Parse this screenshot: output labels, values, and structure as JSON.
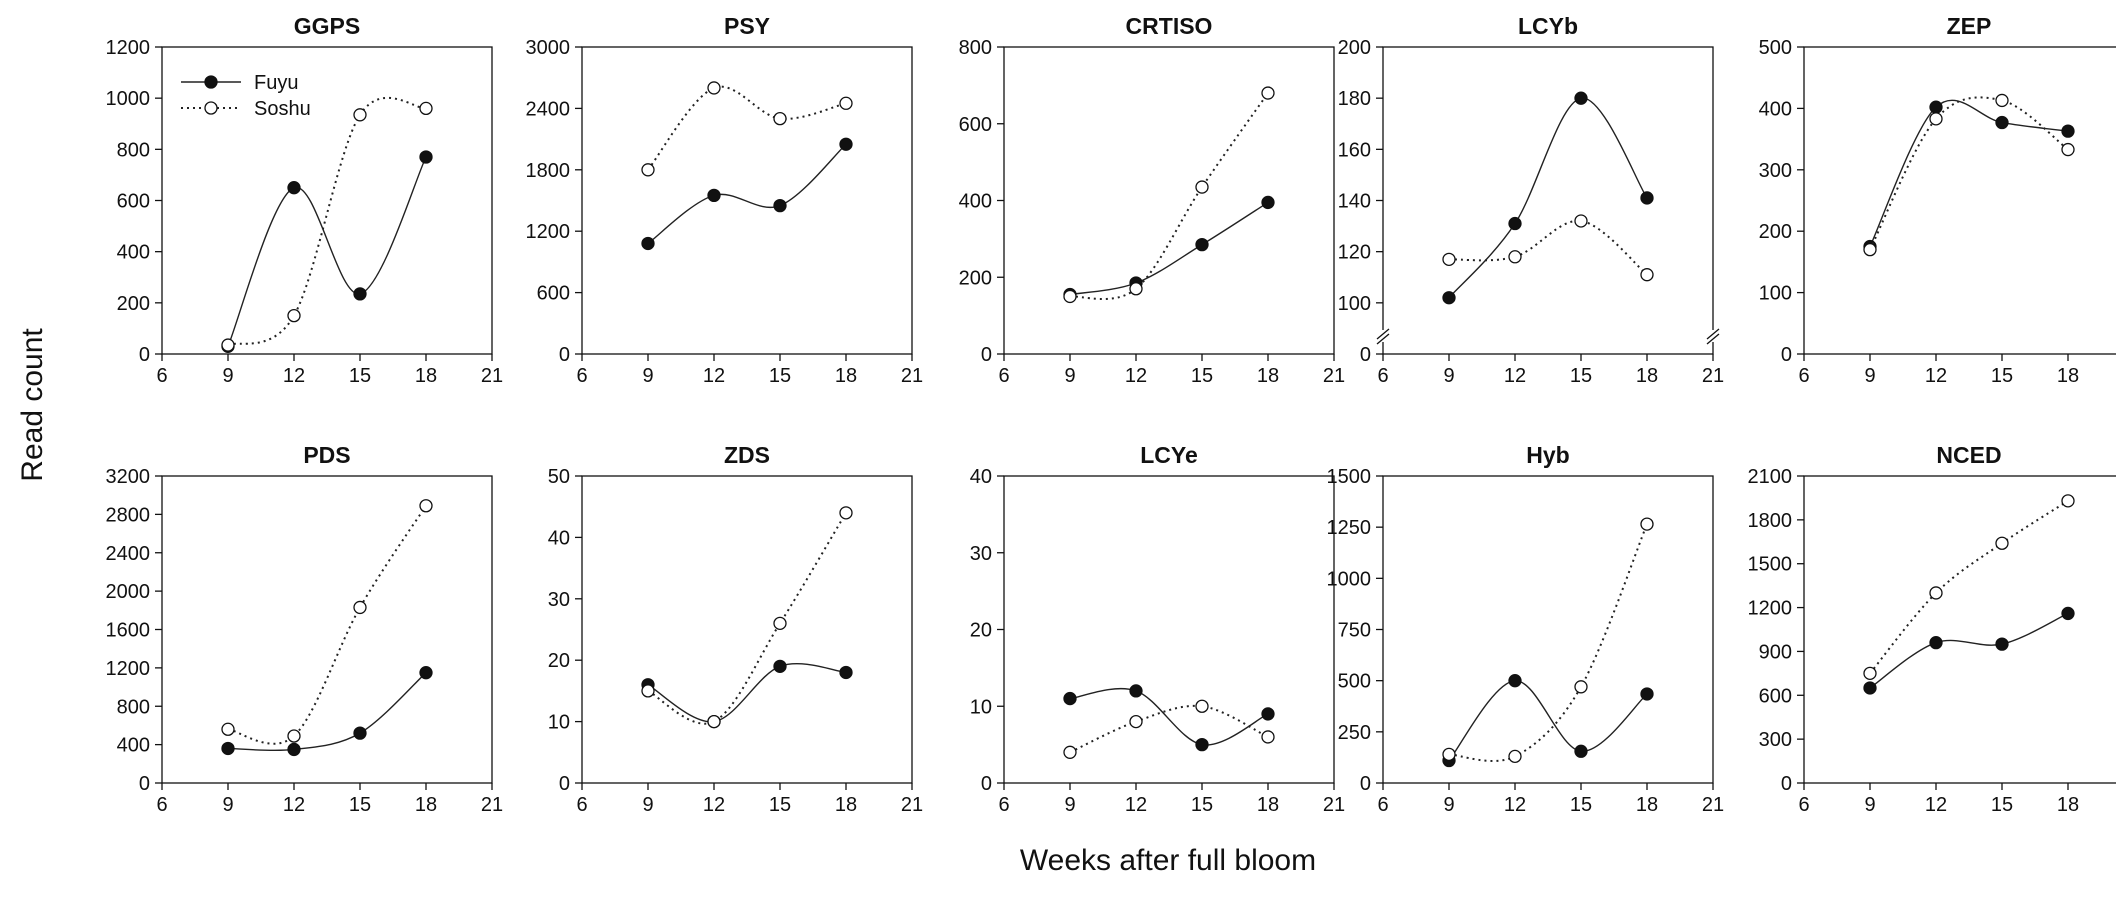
{
  "figure": {
    "ylabel": "Read count",
    "xlabel": "Weeks after full bloom",
    "series_names": [
      "Fuyu",
      "Soshu"
    ]
  },
  "chart_data": [
    {
      "type": "line",
      "title": "GGPS",
      "categories": [
        9,
        12,
        15,
        18
      ],
      "xticks": [
        "6",
        "9",
        "12",
        "15",
        "18",
        "21"
      ],
      "yticks": [
        "0",
        "200",
        "400",
        "600",
        "800",
        "1000",
        "1200"
      ],
      "ylim": [
        0,
        1200
      ],
      "xlim": [
        6,
        21
      ],
      "series": [
        {
          "name": "Fuyu",
          "values": [
            30,
            650,
            235,
            770
          ]
        },
        {
          "name": "Soshu",
          "values": [
            35,
            150,
            935,
            960
          ]
        }
      ]
    },
    {
      "type": "line",
      "title": "PSY",
      "categories": [
        9,
        12,
        15,
        18
      ],
      "xticks": [
        "6",
        "9",
        "12",
        "15",
        "18",
        "21"
      ],
      "yticks": [
        "0",
        "600",
        "1200",
        "1800",
        "2400",
        "3000"
      ],
      "ylim": [
        0,
        3000
      ],
      "xlim": [
        6,
        21
      ],
      "series": [
        {
          "name": "Fuyu",
          "values": [
            1080,
            1550,
            1450,
            2050
          ]
        },
        {
          "name": "Soshu",
          "values": [
            1800,
            2600,
            2300,
            2450
          ]
        }
      ]
    },
    {
      "type": "line",
      "title": "CRTISO",
      "categories": [
        9,
        12,
        15,
        18
      ],
      "xticks": [
        "6",
        "9",
        "12",
        "15",
        "18",
        "21"
      ],
      "yticks": [
        "0",
        "200",
        "400",
        "600",
        "800"
      ],
      "ylim": [
        0,
        800
      ],
      "xlim": [
        6,
        21
      ],
      "series": [
        {
          "name": "Fuyu",
          "values": [
            155,
            185,
            285,
            395
          ]
        },
        {
          "name": "Soshu",
          "values": [
            150,
            170,
            435,
            680
          ]
        }
      ]
    },
    {
      "type": "line",
      "title": "LCYb",
      "categories": [
        9,
        12,
        15,
        18
      ],
      "xticks": [
        "6",
        "9",
        "12",
        "15",
        "18",
        "21"
      ],
      "yticks": [
        "0",
        "100",
        "120",
        "140",
        "160",
        "180",
        "200"
      ],
      "ylim": [
        80,
        200
      ],
      "xlim": [
        6,
        21
      ],
      "axis_break": true,
      "series": [
        {
          "name": "Fuyu",
          "values": [
            102,
            131,
            180,
            141
          ]
        },
        {
          "name": "Soshu",
          "values": [
            117,
            118,
            132,
            111
          ]
        }
      ]
    },
    {
      "type": "line",
      "title": "ZEP",
      "categories": [
        9,
        12,
        15,
        18
      ],
      "xticks": [
        "6",
        "9",
        "12",
        "15",
        "18",
        "21"
      ],
      "yticks": [
        "0",
        "100",
        "200",
        "300",
        "400",
        "500"
      ],
      "ylim": [
        0,
        500
      ],
      "xlim": [
        6,
        21
      ],
      "series": [
        {
          "name": "Fuyu",
          "values": [
            175,
            402,
            377,
            363
          ]
        },
        {
          "name": "Soshu",
          "values": [
            170,
            383,
            413,
            333
          ]
        }
      ]
    },
    {
      "type": "line",
      "title": "PDS",
      "categories": [
        9,
        12,
        15,
        18
      ],
      "xticks": [
        "6",
        "9",
        "12",
        "15",
        "18",
        "21"
      ],
      "yticks": [
        "0",
        "400",
        "800",
        "1200",
        "1600",
        "2000",
        "2400",
        "2800",
        "3200"
      ],
      "ylim": [
        0,
        3200
      ],
      "xlim": [
        6,
        21
      ],
      "series": [
        {
          "name": "Fuyu",
          "values": [
            360,
            350,
            520,
            1150
          ]
        },
        {
          "name": "Soshu",
          "values": [
            560,
            490,
            1830,
            2890
          ]
        }
      ]
    },
    {
      "type": "line",
      "title": "ZDS",
      "categories": [
        9,
        12,
        15,
        18
      ],
      "xticks": [
        "6",
        "9",
        "12",
        "15",
        "18",
        "21"
      ],
      "yticks": [
        "0",
        "10",
        "20",
        "30",
        "40",
        "50"
      ],
      "ylim": [
        0,
        50
      ],
      "xlim": [
        6,
        21
      ],
      "series": [
        {
          "name": "Fuyu",
          "values": [
            16,
            10,
            19,
            18
          ]
        },
        {
          "name": "Soshu",
          "values": [
            15,
            10,
            26,
            44
          ]
        }
      ]
    },
    {
      "type": "line",
      "title": "LCYe",
      "categories": [
        9,
        12,
        15,
        18
      ],
      "xticks": [
        "6",
        "9",
        "12",
        "15",
        "18",
        "21"
      ],
      "yticks": [
        "0",
        "10",
        "20",
        "30",
        "40"
      ],
      "ylim": [
        0,
        40
      ],
      "xlim": [
        6,
        21
      ],
      "series": [
        {
          "name": "Fuyu",
          "values": [
            11,
            12,
            5,
            9
          ]
        },
        {
          "name": "Soshu",
          "values": [
            4,
            8,
            10,
            6
          ]
        }
      ]
    },
    {
      "type": "line",
      "title": "Hyb",
      "categories": [
        9,
        12,
        15,
        18
      ],
      "xticks": [
        "6",
        "9",
        "12",
        "15",
        "18",
        "21"
      ],
      "yticks": [
        "0",
        "250",
        "500",
        "750",
        "1000",
        "1250",
        "1500"
      ],
      "ylim": [
        0,
        1500
      ],
      "xlim": [
        6,
        21
      ],
      "series": [
        {
          "name": "Fuyu",
          "values": [
            110,
            500,
            155,
            435
          ]
        },
        {
          "name": "Soshu",
          "values": [
            140,
            130,
            470,
            1265
          ]
        }
      ]
    },
    {
      "type": "line",
      "title": "NCED",
      "categories": [
        9,
        12,
        15,
        18
      ],
      "xticks": [
        "6",
        "9",
        "12",
        "15",
        "18",
        "21"
      ],
      "yticks": [
        "0",
        "300",
        "600",
        "900",
        "1200",
        "1500",
        "1800",
        "2100"
      ],
      "ylim": [
        0,
        2100
      ],
      "xlim": [
        6,
        21
      ],
      "series": [
        {
          "name": "Fuyu",
          "values": [
            650,
            960,
            950,
            1160
          ]
        },
        {
          "name": "Soshu",
          "values": [
            750,
            1300,
            1640,
            1930
          ]
        }
      ]
    }
  ]
}
